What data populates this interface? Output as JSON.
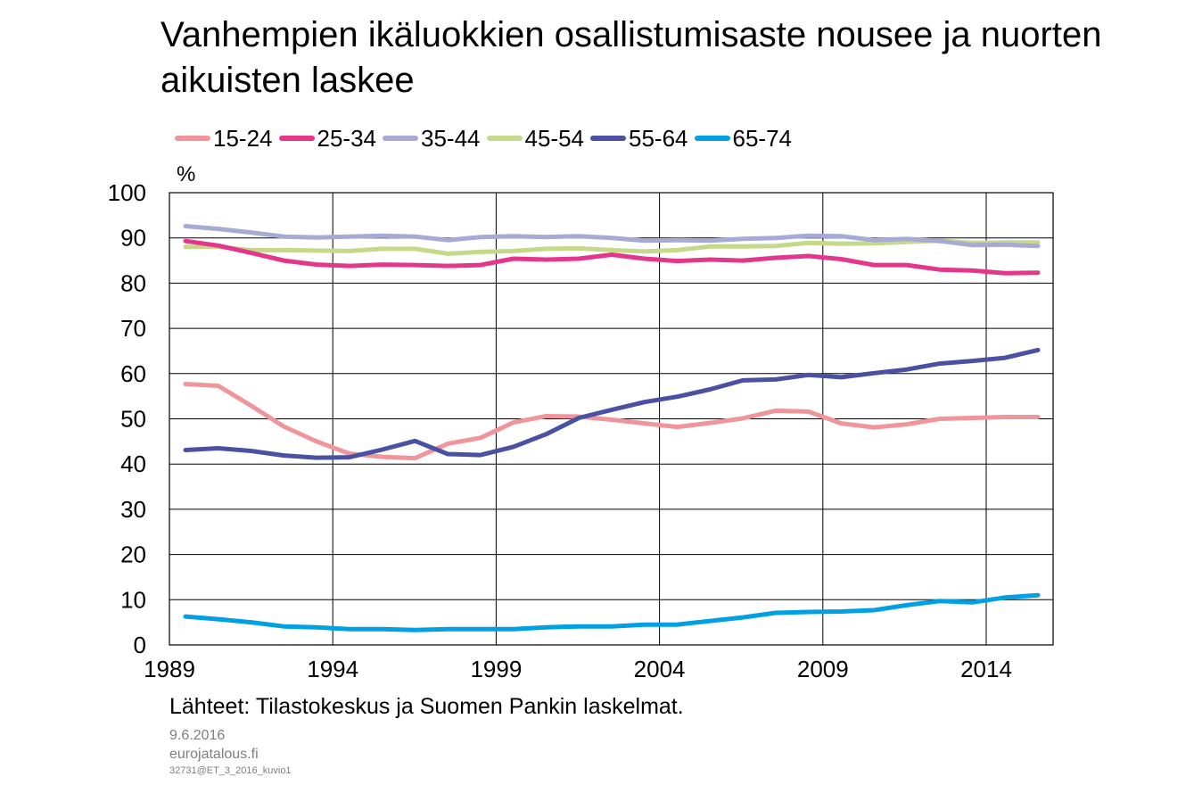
{
  "chart_data": {
    "type": "line",
    "title": "Vanhempien ikäluokkien osallistumisaste nousee ja nuorten aikuisten laskee",
    "ylabel": "%",
    "xlabel": "",
    "xlim": [
      1989,
      2015
    ],
    "ylim": [
      0,
      100
    ],
    "yticks": [
      "0",
      "10",
      "20",
      "30",
      "40",
      "50",
      "60",
      "70",
      "80",
      "90",
      "100"
    ],
    "xticks": [
      "1989",
      "1994",
      "1999",
      "2004",
      "2009",
      "2014"
    ],
    "grid": true,
    "legend": "top",
    "x": [
      1989,
      1990,
      1991,
      1992,
      1993,
      1994,
      1995,
      1996,
      1997,
      1998,
      1999,
      2000,
      2001,
      2002,
      2003,
      2004,
      2005,
      2006,
      2007,
      2008,
      2009,
      2010,
      2011,
      2012,
      2013,
      2014,
      2015
    ],
    "series": [
      {
        "name": "15-24",
        "color": "#f0959b",
        "values": [
          57.7,
          57.3,
          52.9,
          48.3,
          45.0,
          42.3,
          41.6,
          41.3,
          44.5,
          45.8,
          49.2,
          50.6,
          50.5,
          49.8,
          49.0,
          48.2,
          49.1,
          50.1,
          51.8,
          51.6,
          49.0,
          48.1,
          48.8,
          50.0,
          50.2,
          50.4,
          50.4
        ]
      },
      {
        "name": "25-34",
        "color": "#e4378c",
        "values": [
          89.3,
          88.3,
          86.7,
          85.0,
          84.1,
          83.8,
          84.1,
          84.0,
          83.8,
          84.0,
          85.4,
          85.2,
          85.4,
          86.3,
          85.4,
          84.9,
          85.2,
          85.0,
          85.6,
          86.0,
          85.3,
          84.0,
          84.0,
          83.0,
          82.8,
          82.2,
          82.3
        ]
      },
      {
        "name": "35-44",
        "color": "#a6aad4",
        "values": [
          92.6,
          92.0,
          91.2,
          90.3,
          90.1,
          90.3,
          90.5,
          90.3,
          89.5,
          90.2,
          90.4,
          90.2,
          90.4,
          90.0,
          89.4,
          89.5,
          89.4,
          89.8,
          90.0,
          90.5,
          90.4,
          89.5,
          89.8,
          89.3,
          88.4,
          88.5,
          88.2
        ]
      },
      {
        "name": "45-54",
        "color": "#c6d98a",
        "values": [
          88.0,
          88.0,
          87.3,
          87.3,
          87.2,
          87.1,
          87.6,
          87.6,
          86.5,
          86.9,
          87.1,
          87.6,
          87.7,
          87.3,
          87.0,
          87.3,
          88.1,
          88.1,
          88.2,
          88.9,
          88.7,
          88.8,
          89.1,
          89.4,
          88.9,
          89.0,
          89.0
        ]
      },
      {
        "name": "55-64",
        "color": "#4a51a2",
        "values": [
          43.1,
          43.5,
          42.9,
          41.9,
          41.4,
          41.5,
          43.2,
          45.1,
          42.2,
          42.0,
          43.8,
          46.6,
          50.2,
          52.0,
          53.7,
          54.9,
          56.5,
          58.5,
          58.7,
          59.7,
          59.2,
          60.1,
          60.9,
          62.2,
          62.8,
          63.5,
          65.2
        ]
      },
      {
        "name": "65-74",
        "color": "#00a0e3",
        "values": [
          6.3,
          5.7,
          5.0,
          4.1,
          3.9,
          3.5,
          3.5,
          3.3,
          3.5,
          3.5,
          3.5,
          3.9,
          4.1,
          4.1,
          4.5,
          4.5,
          5.3,
          6.1,
          7.1,
          7.3,
          7.4,
          7.7,
          8.8,
          9.7,
          9.4,
          10.5,
          11.0
        ]
      }
    ],
    "source": "Lähteet: Tilastokeskus ja Suomen Pankin laskelmat."
  },
  "footer": {
    "date": "9.6.2016",
    "site": "eurojatalous.fi",
    "code": "32731@ET_3_2016_kuvio1"
  }
}
